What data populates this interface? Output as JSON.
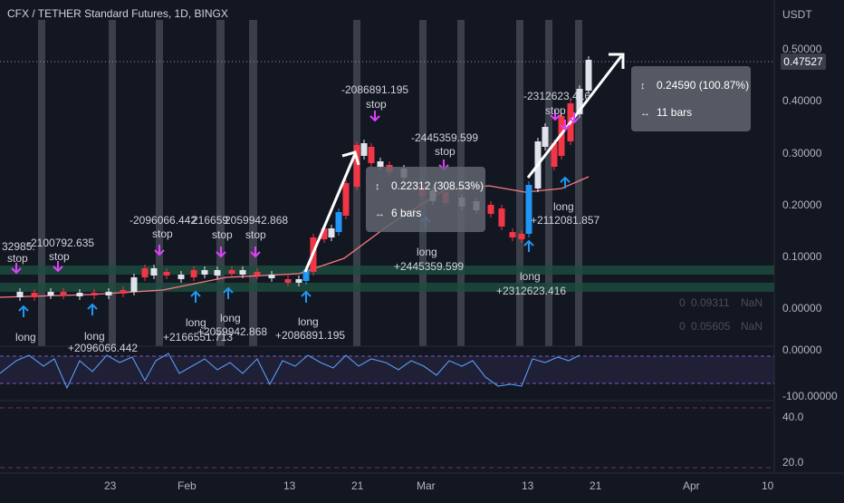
{
  "header": {
    "title": "CFX / TETHER Standard Futures, 1D, BINGX"
  },
  "price_axis": {
    "unit": "USDT",
    "ticks": [
      "0.50000",
      "0.40000",
      "0.30000",
      "0.20000",
      "0.10000",
      "0.00000"
    ],
    "current_price": "0.47527"
  },
  "oscillator_axis": {
    "ticks": [
      "0.00000",
      "-100.00000",
      "40.0",
      "20.0"
    ]
  },
  "time_axis": {
    "ticks": [
      "23",
      "Feb",
      "13",
      "21",
      "Mar",
      "13",
      "21",
      "Apr",
      "10"
    ]
  },
  "faint_values": [
    {
      "a": "0",
      "b": "0.09311",
      "c": "NaN"
    },
    {
      "a": "0",
      "b": "0.05605",
      "c": "NaN"
    }
  ],
  "measure_boxes": [
    {
      "change": "0.22312 (308.53%)",
      "bars": "6 bars"
    },
    {
      "change": "0.24590 (100.87%)",
      "bars": "11 bars"
    }
  ],
  "signal_labels": {
    "stops": [
      {
        "value": "32985.",
        "label": "stop"
      },
      {
        "value": "-2100792.635",
        "label": "stop"
      },
      {
        "value": "-2096066.442",
        "label": "stop"
      },
      {
        "value": "216659",
        "label": "stop"
      },
      {
        "value": "2059942.868",
        "label": "stop"
      },
      {
        "value": "-2086891.195",
        "label": "stop"
      },
      {
        "value": "-2445359.599",
        "label": "stop"
      },
      {
        "value": "-2312623.416",
        "label": "stop"
      }
    ],
    "longs": [
      {
        "label": "long",
        "value": ""
      },
      {
        "label": "long",
        "value": "+2096066.442"
      },
      {
        "label": "long",
        "value": "+2166551.713"
      },
      {
        "label": "long",
        "value": "+2059942.868"
      },
      {
        "label": "long",
        "value": "+2086891.195"
      },
      {
        "label": "long",
        "value": "+2445359.599"
      },
      {
        "label": "long",
        "value": "+2312623.416"
      },
      {
        "label": "long",
        "value": "+2112081.857"
      }
    ]
  },
  "colors": {
    "background": "#131722",
    "up": "#ffffff",
    "down": "#f23645",
    "signal_blue": "#2196f3",
    "stop_magenta": "#e040fb",
    "ma_line": "#f77c80",
    "rsi_line": "#5b9cf6",
    "band_fill": "#7e57c2"
  }
}
